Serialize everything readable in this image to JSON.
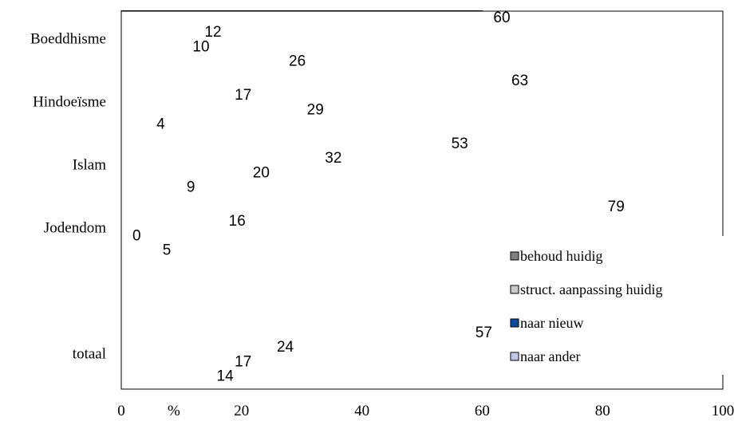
{
  "chart_data": {
    "type": "bar",
    "orientation": "horizontal",
    "categories": [
      "Boeddhisme",
      "Hindoeïsme",
      "Islam",
      "Jodendom",
      "",
      "totaal"
    ],
    "series": [
      {
        "name": "behoud huidig",
        "values": [
          60,
          63,
          53,
          79,
          null,
          57
        ],
        "color": "#808080"
      },
      {
        "name": "struct. aanpassing huidig",
        "values": [
          12,
          17,
          32,
          16,
          null,
          24
        ],
        "color": "#c8c8c8"
      },
      {
        "name": "naar nieuw",
        "values": [
          10,
          29,
          20,
          0,
          null,
          17
        ],
        "color": "#0a4b9e"
      },
      {
        "name": "naar ander",
        "values": [
          26,
          4,
          9,
          5,
          null,
          14
        ],
        "color": "#c0c8e8"
      }
    ],
    "xlim": [
      0,
      100
    ],
    "xticks": [
      0,
      20,
      40,
      60,
      80,
      100
    ],
    "xlabel": "%",
    "grid": "vertical",
    "legend_position": "bottom-right"
  }
}
